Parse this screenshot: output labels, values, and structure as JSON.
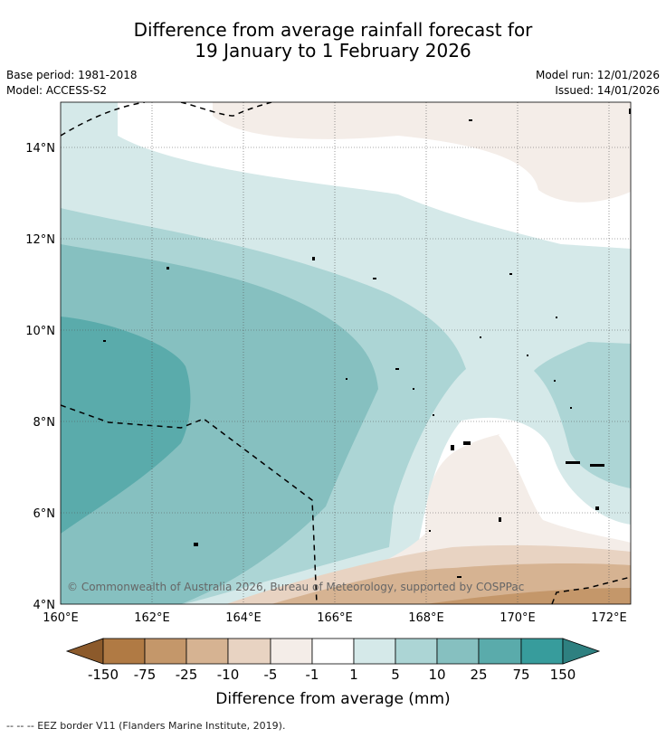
{
  "title": {
    "line1": "Difference from average rainfall forecast for",
    "line2": "19 January to 1 February 2026"
  },
  "meta": {
    "base_period": "Base period: 1981-2018",
    "model": "Model: ACCESS-S2",
    "model_run": "Model run: 12/01/2026",
    "issued": "Issued: 14/01/2026"
  },
  "map": {
    "lat_labels": [
      "14°N",
      "12°N",
      "10°N",
      "8°N",
      "6°N",
      "4°N"
    ],
    "lon_labels": [
      "160°E",
      "162°E",
      "164°E",
      "166°E",
      "168°E",
      "170°E",
      "172°E"
    ],
    "copyright": "© Commonwealth of Australia 2026, Bureau of Meteorology, supported by COSPPac"
  },
  "legend": {
    "ticks": [
      "-150",
      "-75",
      "-25",
      "-10",
      "-5",
      "-1",
      "1",
      "5",
      "10",
      "25",
      "75",
      "150"
    ],
    "colors": [
      "#8c5a2b",
      "#b07a44",
      "#c4976a",
      "#d6b392",
      "#e8d3c2",
      "#f4ede8",
      "#ffffff",
      "#d5e9e9",
      "#acd5d5",
      "#86c0c0",
      "#5aabab",
      "#379c9c",
      "#2e8080"
    ],
    "label": "Difference from average (mm)"
  },
  "footer": {
    "eez_note": "--  --  -- EEZ border V11 (Flanders Marine Institute, 2019)."
  }
}
